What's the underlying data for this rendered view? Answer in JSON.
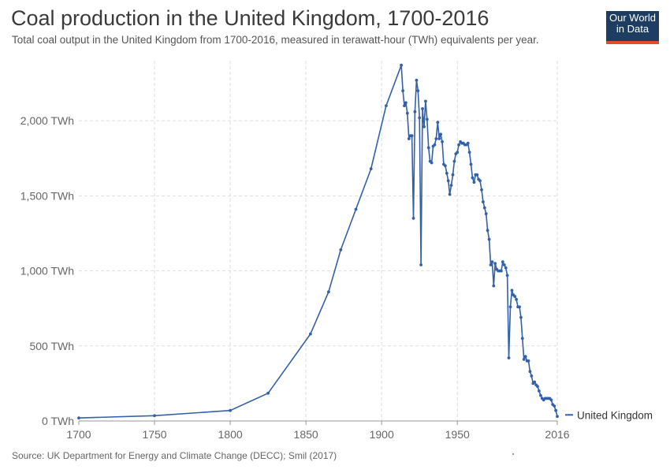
{
  "header": {
    "title": "Coal production in the United Kingdom, 1700-2016",
    "subtitle": "Total coal output in the United Kingdom from 1700-2016, measured in terawatt-hour (TWh) equivalents per year."
  },
  "logo": {
    "line1": "Our World",
    "line2": "in Data",
    "bg": "#1d3d63",
    "accent": "#e14f28"
  },
  "footer": {
    "source": "Source: UK Department for Energy and Climate Change (DECC); Smil (2017)"
  },
  "chart_data": {
    "type": "line",
    "title": "Coal production in the United Kingdom, 1700-2016",
    "xlabel": "",
    "ylabel": "",
    "xlim": [
      1700,
      2016
    ],
    "ylim": [
      0,
      2400
    ],
    "grid": true,
    "legend_position": "right",
    "x_ticks": [
      "1700",
      "1750",
      "1800",
      "1850",
      "1900",
      "1950",
      "2016"
    ],
    "x_tick_values": [
      1700,
      1750,
      1800,
      1850,
      1900,
      1950,
      2016
    ],
    "y_ticks": [
      "0 TWh",
      "500 TWh",
      "1,000 TWh",
      "1,500 TWh",
      "2,000 TWh"
    ],
    "y_tick_values": [
      0,
      500,
      1000,
      1500,
      2000
    ],
    "series": [
      {
        "name": "United Kingdom",
        "color": "#3360a9",
        "points": [
          [
            1700,
            20
          ],
          [
            1750,
            35
          ],
          [
            1800,
            70
          ],
          [
            1825,
            185
          ],
          [
            1853,
            580
          ],
          [
            1865,
            860
          ],
          [
            1873,
            1140
          ],
          [
            1883,
            1410
          ],
          [
            1893,
            1680
          ],
          [
            1903,
            2100
          ],
          [
            1913,
            2370
          ],
          [
            1914,
            2200
          ],
          [
            1915,
            2100
          ],
          [
            1916,
            2120
          ],
          [
            1917,
            2050
          ],
          [
            1918,
            1880
          ],
          [
            1919,
            1900
          ],
          [
            1920,
            1900
          ],
          [
            1921,
            1350
          ],
          [
            1922,
            2060
          ],
          [
            1923,
            2270
          ],
          [
            1924,
            2200
          ],
          [
            1925,
            2020
          ],
          [
            1926,
            1040
          ],
          [
            1927,
            2080
          ],
          [
            1928,
            1960
          ],
          [
            1929,
            2130
          ],
          [
            1930,
            2010
          ],
          [
            1931,
            1820
          ],
          [
            1932,
            1730
          ],
          [
            1933,
            1720
          ],
          [
            1934,
            1830
          ],
          [
            1935,
            1840
          ],
          [
            1936,
            1880
          ],
          [
            1937,
            1990
          ],
          [
            1938,
            1880
          ],
          [
            1939,
            1910
          ],
          [
            1940,
            1860
          ],
          [
            1941,
            1710
          ],
          [
            1942,
            1700
          ],
          [
            1943,
            1650
          ],
          [
            1944,
            1600
          ],
          [
            1945,
            1510
          ],
          [
            1946,
            1570
          ],
          [
            1947,
            1640
          ],
          [
            1948,
            1730
          ],
          [
            1949,
            1780
          ],
          [
            1950,
            1790
          ],
          [
            1951,
            1840
          ],
          [
            1952,
            1860
          ],
          [
            1953,
            1850
          ],
          [
            1954,
            1850
          ],
          [
            1955,
            1840
          ],
          [
            1956,
            1840
          ],
          [
            1957,
            1850
          ],
          [
            1958,
            1790
          ],
          [
            1959,
            1710
          ],
          [
            1960,
            1620
          ],
          [
            1961,
            1590
          ],
          [
            1962,
            1640
          ],
          [
            1963,
            1640
          ],
          [
            1964,
            1610
          ],
          [
            1965,
            1600
          ],
          [
            1966,
            1540
          ],
          [
            1967,
            1460
          ],
          [
            1968,
            1420
          ],
          [
            1969,
            1380
          ],
          [
            1970,
            1270
          ],
          [
            1971,
            1210
          ],
          [
            1972,
            1040
          ],
          [
            1973,
            1060
          ],
          [
            1974,
            900
          ],
          [
            1975,
            1050
          ],
          [
            1976,
            1010
          ],
          [
            1977,
            1000
          ],
          [
            1978,
            1000
          ],
          [
            1979,
            1000
          ],
          [
            1980,
            1060
          ],
          [
            1981,
            1040
          ],
          [
            1982,
            1020
          ],
          [
            1983,
            970
          ],
          [
            1984,
            420
          ],
          [
            1985,
            760
          ],
          [
            1986,
            870
          ],
          [
            1987,
            840
          ],
          [
            1988,
            830
          ],
          [
            1989,
            810
          ],
          [
            1990,
            760
          ],
          [
            1991,
            760
          ],
          [
            1992,
            690
          ],
          [
            1993,
            550
          ],
          [
            1994,
            410
          ],
          [
            1995,
            430
          ],
          [
            1996,
            400
          ],
          [
            1997,
            400
          ],
          [
            1998,
            330
          ],
          [
            1999,
            300
          ],
          [
            2000,
            250
          ],
          [
            2001,
            260
          ],
          [
            2002,
            240
          ],
          [
            2003,
            230
          ],
          [
            2004,
            200
          ],
          [
            2005,
            170
          ],
          [
            2006,
            150
          ],
          [
            2007,
            140
          ],
          [
            2008,
            150
          ],
          [
            2009,
            150
          ],
          [
            2010,
            150
          ],
          [
            2011,
            150
          ],
          [
            2012,
            140
          ],
          [
            2013,
            110
          ],
          [
            2014,
            100
          ],
          [
            2015,
            70
          ],
          [
            2016,
            30
          ]
        ]
      }
    ]
  }
}
